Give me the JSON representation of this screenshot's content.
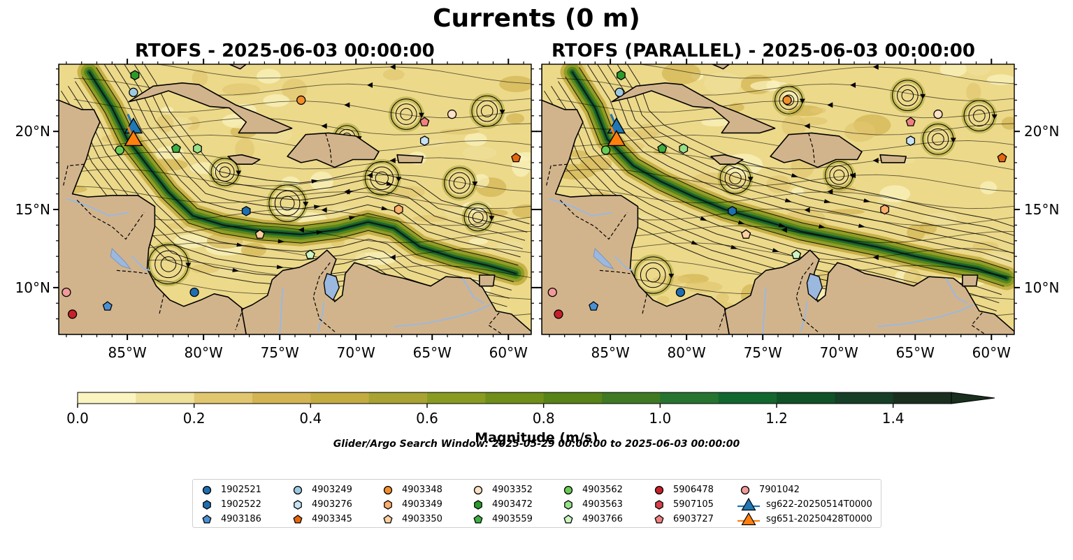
{
  "title": "Currents (0 m)",
  "panels": [
    {
      "title": "RTOFS - 2025-06-03 00:00:00"
    },
    {
      "title": "RTOFS (PARALLEL) - 2025-06-03 00:00:00"
    }
  ],
  "map_extent": {
    "lon": [
      -89.5,
      -58.5
    ],
    "lat": [
      7,
      24.3
    ]
  },
  "lon_ticks": [
    "85°W",
    "80°W",
    "75°W",
    "70°W",
    "65°W",
    "60°W"
  ],
  "lat_ticks": [
    "20°N",
    "15°N",
    "10°N"
  ],
  "colorbar": {
    "label": "Magnitude (m/s)",
    "ticks": [
      "0.0",
      "0.2",
      "0.4",
      "0.6",
      "0.8",
      "1.0",
      "1.2",
      "1.4"
    ],
    "range": [
      0,
      1.5
    ],
    "colors": [
      "#fbf4c0",
      "#efe09a",
      "#e1c670",
      "#d3b452",
      "#c3ac3f",
      "#a8a332",
      "#8a9b22",
      "#6f8f1a",
      "#578317",
      "#3f7a22",
      "#267430",
      "#12672f",
      "#0f5228",
      "#163f28",
      "#1b2f1f"
    ]
  },
  "search_window": "Glider/Argo Search Window: 2025-05-29 00:00:00 to 2025-06-03 00:00:00",
  "legend": [
    {
      "label": "1902521",
      "marker": "circle",
      "color": "#1f6eb0"
    },
    {
      "label": "1902522",
      "marker": "hexagon",
      "color": "#1f6eb0"
    },
    {
      "label": "4903186",
      "marker": "pentagon",
      "color": "#4a90d2"
    },
    {
      "label": "4903249",
      "marker": "circle",
      "color": "#9ecae1"
    },
    {
      "label": "4903276",
      "marker": "hexagon",
      "color": "#c6e2f5"
    },
    {
      "label": "4903345",
      "marker": "pentagon",
      "color": "#e6660d"
    },
    {
      "label": "4903348",
      "marker": "circle",
      "color": "#f28e2b"
    },
    {
      "label": "4903349",
      "marker": "hexagon",
      "color": "#fdae6b"
    },
    {
      "label": "4903350",
      "marker": "pentagon",
      "color": "#fdd0a2"
    },
    {
      "label": "4903352",
      "marker": "circle",
      "color": "#fde0c5"
    },
    {
      "label": "4903472",
      "marker": "hexagon",
      "color": "#2b9a2b"
    },
    {
      "label": "4903559",
      "marker": "pentagon",
      "color": "#3cb043"
    },
    {
      "label": "4903562",
      "marker": "circle",
      "color": "#66cc55"
    },
    {
      "label": "4903563",
      "marker": "hexagon",
      "color": "#98df8a"
    },
    {
      "label": "4903766",
      "marker": "pentagon",
      "color": "#ccf5c0"
    },
    {
      "label": "5906478",
      "marker": "circle",
      "color": "#c8202a"
    },
    {
      "label": "5907105",
      "marker": "hexagon",
      "color": "#d6424a"
    },
    {
      "label": "6903727",
      "marker": "pentagon",
      "color": "#f08080"
    },
    {
      "label": "7901042",
      "marker": "circle",
      "color": "#f29a9a"
    },
    {
      "label": "sg622-20250514T0000",
      "marker": "triangle-line",
      "color": "#1f77b4"
    },
    {
      "label": "sg651-20250428T0000",
      "marker": "triangle-line",
      "color": "#ff7f0e"
    }
  ],
  "floats": [
    {
      "id": "4903472",
      "lon": -84.5,
      "lat": 23.6,
      "marker": "hexagon",
      "color": "#2b9a2b"
    },
    {
      "id": "4903249",
      "lon": -84.6,
      "lat": 22.5,
      "marker": "circle",
      "color": "#9ecae1"
    },
    {
      "id": "4903562",
      "lon": -85.5,
      "lat": 18.8,
      "marker": "circle",
      "color": "#66cc55"
    },
    {
      "id": "4903559",
      "lon": -81.8,
      "lat": 18.9,
      "marker": "pentagon",
      "color": "#3cb043"
    },
    {
      "id": "4903563",
      "lon": -80.4,
      "lat": 18.9,
      "marker": "hexagon",
      "color": "#98df8a"
    },
    {
      "id": "4903348",
      "lon": -73.6,
      "lat": 22.0,
      "marker": "circle",
      "color": "#f28e2b"
    },
    {
      "id": "4903352",
      "lon": -63.7,
      "lat": 21.1,
      "marker": "circle",
      "color": "#fde0c5"
    },
    {
      "id": "6903727",
      "lon": -65.5,
      "lat": 20.6,
      "marker": "pentagon",
      "color": "#f08080"
    },
    {
      "id": "4903276",
      "lon": -65.5,
      "lat": 19.4,
      "marker": "hexagon",
      "color": "#c6e2f5"
    },
    {
      "id": "4903345",
      "lon": -59.5,
      "lat": 18.3,
      "marker": "pentagon",
      "color": "#e6660d"
    },
    {
      "id": "1902522",
      "lon": -77.2,
      "lat": 14.9,
      "marker": "hexagon",
      "color": "#1f6eb0"
    },
    {
      "id": "4903349",
      "lon": -67.2,
      "lat": 15.0,
      "marker": "hexagon",
      "color": "#fdae6b"
    },
    {
      "id": "4903350",
      "lon": -76.3,
      "lat": 13.4,
      "marker": "pentagon",
      "color": "#fdd0a2"
    },
    {
      "id": "4903766",
      "lon": -73.0,
      "lat": 12.1,
      "marker": "pentagon",
      "color": "#ccf5c0"
    },
    {
      "id": "1902521",
      "lon": -80.6,
      "lat": 9.7,
      "marker": "circle",
      "color": "#1f6eb0"
    },
    {
      "id": "7901042",
      "lon": -89.0,
      "lat": 9.7,
      "marker": "circle",
      "color": "#f29a9a"
    },
    {
      "id": "4903186",
      "lon": -86.3,
      "lat": 8.8,
      "marker": "pentagon",
      "color": "#4a90d2"
    },
    {
      "id": "5906478",
      "lon": -88.6,
      "lat": 8.3,
      "marker": "circle",
      "color": "#c8202a"
    }
  ],
  "gliders": [
    {
      "id": "sg622-20250514T0000",
      "lon": -84.6,
      "lat": 20.3,
      "color": "#1f77b4"
    },
    {
      "id": "sg651-20250428T0000",
      "lon": -84.6,
      "lat": 19.5,
      "color": "#ff7f0e"
    }
  ]
}
